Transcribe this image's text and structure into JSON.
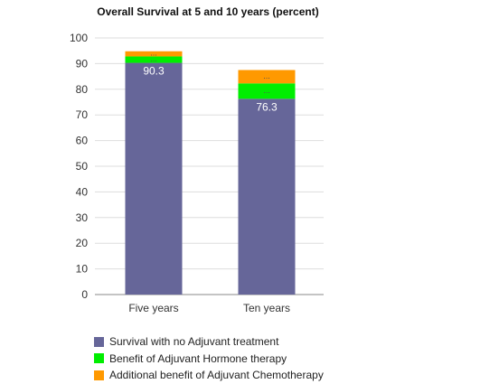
{
  "chart_data": {
    "type": "bar",
    "stacked": true,
    "title": "Overall Survival at 5 and 10 years (percent)",
    "xlabel": "",
    "ylabel": "",
    "categories": [
      "Five years",
      "Ten years"
    ],
    "ylim": [
      0,
      100
    ],
    "yticks": [
      0,
      10,
      20,
      30,
      40,
      50,
      60,
      70,
      80,
      90,
      100
    ],
    "grid": true,
    "legend_position": "bottom",
    "series": [
      {
        "name": "Survival with no Adjuvant treatment",
        "values": [
          90.3,
          76.3
        ],
        "color": "#666699",
        "labels": [
          "90.3",
          "76.3"
        ]
      },
      {
        "name": "Benefit of Adjuvant Hormone therapy",
        "values": [
          2.5,
          6.0
        ],
        "color": "#00ee00",
        "labels": [
          "...",
          "..."
        ]
      },
      {
        "name": "Additional benefit of Adjuvant Chemotherapy",
        "values": [
          2.0,
          5.2
        ],
        "color": "#ff9900",
        "labels": [
          "...",
          "..."
        ]
      }
    ]
  }
}
